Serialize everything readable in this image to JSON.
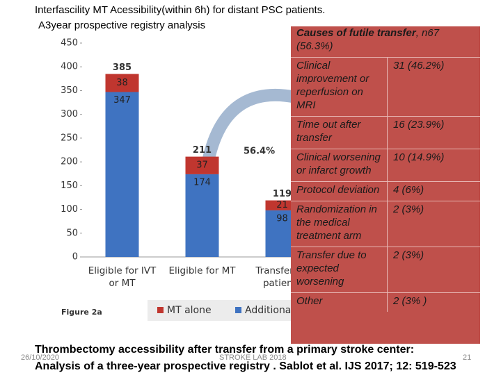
{
  "header": {
    "title": "Interfascility MT Acessibility(within 6h) for  distant  PSC  patients.",
    "subtitle": "A3year prospective registry analysis"
  },
  "chart_data": {
    "type": "stacked_bar",
    "figure_label": "Figure 2a",
    "annotation": "56.4%",
    "categories": [
      "Eligible for IVT or MT",
      "Eligible for MT",
      "Transferred patients"
    ],
    "series": [
      {
        "name": "Additional",
        "color": "#3f73c1",
        "values": [
          347,
          174,
          98
        ]
      },
      {
        "name": "MT alone",
        "color": "#c0362f",
        "values": [
          38,
          37,
          21
        ]
      }
    ],
    "totals": [
      385,
      211,
      119
    ],
    "ylim": [
      0,
      450
    ],
    "yticks": [
      0,
      50,
      100,
      150,
      200,
      250,
      300,
      350,
      400,
      450
    ]
  },
  "table": {
    "title_bold": "Causes of futile transfer",
    "title_rest": ", n67 (56.3%)",
    "rows": [
      [
        "Clinical improvement or reperfusion on MRI",
        "31 (46.2%)"
      ],
      [
        "Time out after transfer",
        "16 (23.9%)"
      ],
      [
        "Clinical worsening or infarct growth",
        "10 (14.9%)"
      ],
      [
        "Protocol deviation",
        "4 (6%)"
      ],
      [
        "Randomization in the medical treatment arm",
        "2 (3%)"
      ],
      [
        "Transfer due to expected worsening",
        "2 (3%)"
      ],
      [
        "Other",
        "2 (3% )"
      ]
    ]
  },
  "footer": {
    "reference_line1": "Thrombectomy accessibility after transfer from a primary stroke center:",
    "reference_line2": "Analysis of a three-year prospective registry . Sablot et al. IJS  2017; 12: 519-523",
    "date": "26/10/2020",
    "lab": "STROKE LAB 2018",
    "page": "21"
  }
}
